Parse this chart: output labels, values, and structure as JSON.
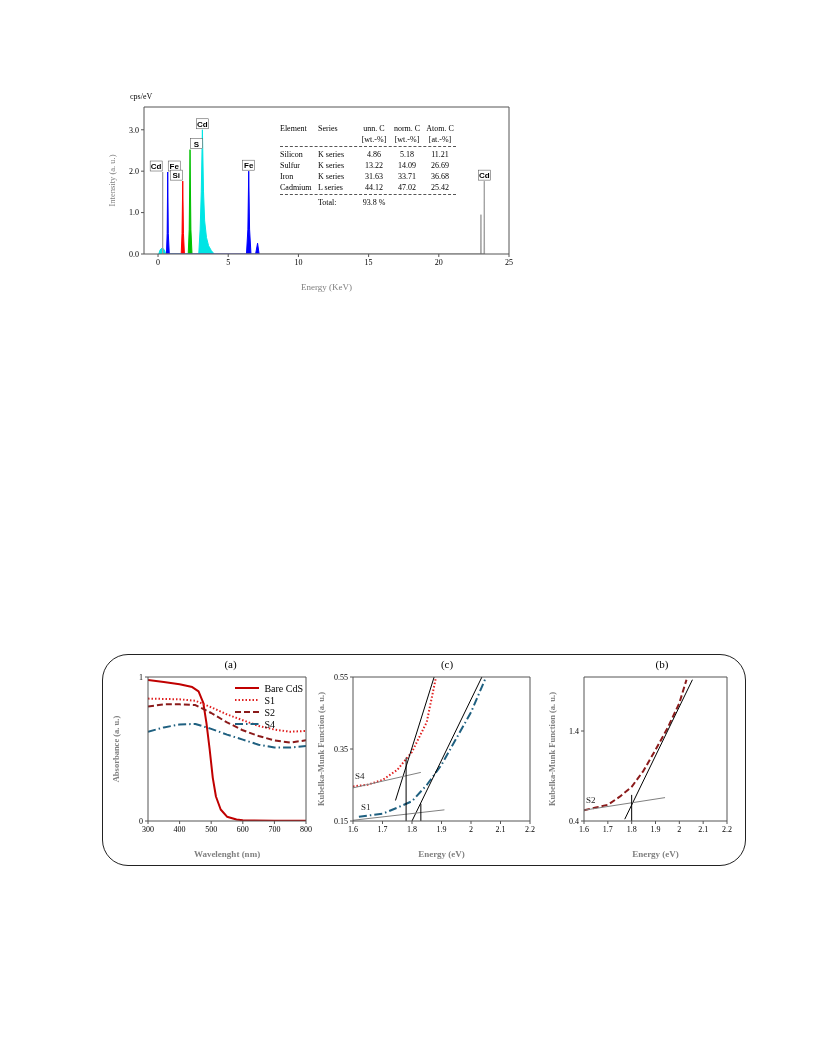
{
  "chart_data": [
    {
      "type": "area",
      "xlabel": "Energy (KeV)",
      "ylabel": "Intensity (a. u.)",
      "xlim": [
        -1,
        25
      ],
      "ylim": [
        0,
        3.55
      ],
      "xticks": [
        0,
        5,
        10,
        15,
        20,
        25
      ],
      "yticks": [
        {
          "value": 0,
          "label": "0.0"
        },
        {
          "value": 1,
          "label": "1.0"
        },
        {
          "value": 2,
          "label": "2.0"
        },
        {
          "value": 3,
          "label": "3.0"
        }
      ],
      "series": [
        {
          "color": "#00e5e5",
          "x": [
            0.05,
            0.15,
            0.3,
            0.45,
            0.55,
            2.9,
            3.0,
            3.08,
            3.16,
            3.24,
            3.32,
            3.45,
            3.6,
            3.8,
            4.0
          ],
          "values": [
            0,
            0.1,
            0.15,
            0.1,
            0,
            0,
            0.6,
            1.5,
            3.0,
            1.5,
            0.8,
            0.4,
            0.2,
            0.08,
            0
          ]
        },
        {
          "color": "#00c000",
          "x": [
            2.15,
            2.22,
            2.28,
            2.34,
            2.42
          ],
          "values": [
            0,
            0.6,
            2.52,
            0.6,
            0
          ]
        },
        {
          "color": "#ff0000",
          "x": [
            1.65,
            1.71,
            1.76,
            1.81,
            1.88
          ],
          "values": [
            0,
            0.5,
            1.76,
            0.5,
            0
          ]
        },
        {
          "color": "#0000ff",
          "x": [
            0.6,
            0.65,
            0.69,
            0.73,
            0.8,
            6.3,
            6.4,
            6.46,
            6.52,
            6.62,
            6.95,
            7.09,
            7.2
          ],
          "values": [
            0,
            0.5,
            1.98,
            0.5,
            0,
            0,
            0.6,
            2.0,
            0.6,
            0,
            0,
            0.26,
            0
          ]
        },
        {
          "type": "line",
          "color": "#a0a0a0",
          "x": [
            0.32,
            0.33,
            0.34,
            22.98,
            23.0,
            23.02,
            23.22,
            23.24,
            23.26
          ],
          "values": [
            0,
            1.98,
            0,
            0,
            0.95,
            0,
            0,
            1.76,
            0
          ]
        }
      ],
      "annotations": [
        "cps/eV",
        {
          "text": "Cd",
          "x": 0.33,
          "y": 1.98
        },
        {
          "text": "Fe",
          "x": 0.69,
          "y": 1.98
        },
        {
          "text": "Si",
          "x": 1.76,
          "y": 1.76
        },
        {
          "text": "S",
          "x": 2.28,
          "y": 2.52
        },
        {
          "text": "Cd",
          "x": 3.16,
          "y": 3.0
        },
        {
          "text": "Fe",
          "x": 6.46,
          "y": 2.0
        },
        {
          "text": "Cd",
          "x": 23.24,
          "y": 1.76
        },
        "Element\tSeries\tunn. C\tnorm. C\tAtom. C",
        "\t\t[wt.-%]\t[wt.-%]\t[at.-%]",
        "Silicon\tK series\t4.86\t5.18\t11.21",
        "Sulfur\tK series\t13.22\t14.09\t26.69",
        "Iron\tK series\t31.63\t33.71\t36.68",
        "Cadmium\tL series\t44.12\t47.02\t25.42",
        "\tTotal:\t93.8 %"
      ]
    },
    {
      "type": "line",
      "title": "(a)",
      "xlabel": "Wavelenght (nm)",
      "ylabel": "Absorbance (a. u.)",
      "xlim": [
        300,
        800
      ],
      "ylim": [
        0,
        1
      ],
      "xticks": [
        300,
        400,
        500,
        600,
        700,
        800
      ],
      "yticks": [
        0,
        1
      ],
      "legend": "top right",
      "x": [
        300,
        350,
        400,
        440,
        460,
        475,
        485,
        495,
        505,
        515,
        530,
        550,
        580,
        600,
        700,
        800
      ],
      "series": [
        {
          "name": "Bare CdS",
          "color": "#c00000",
          "line_style": "solid",
          "values": [
            0.98,
            0.965,
            0.95,
            0.93,
            0.9,
            0.82,
            0.68,
            0.5,
            0.3,
            0.17,
            0.08,
            0.03,
            0.01,
            0.005,
            0.002,
            0.002
          ]
        },
        {
          "name": "S1",
          "color": "#e02020",
          "line_style": "dotted",
          "x": [
            300,
            400,
            450,
            500,
            550,
            600,
            650,
            700,
            750,
            800
          ],
          "values": [
            0.85,
            0.845,
            0.835,
            0.79,
            0.74,
            0.7,
            0.66,
            0.635,
            0.62,
            0.625
          ]
        },
        {
          "name": "S2",
          "color": "#8b1a1a",
          "line_style": "dashed",
          "x": [
            300,
            350,
            400,
            450,
            500,
            550,
            600,
            650,
            700,
            750,
            800
          ],
          "values": [
            0.795,
            0.81,
            0.81,
            0.805,
            0.75,
            0.685,
            0.63,
            0.59,
            0.56,
            0.545,
            0.56
          ]
        },
        {
          "name": "S4",
          "color": "#1f6080",
          "line_style": "dashdot",
          "x": [
            300,
            350,
            400,
            450,
            500,
            550,
            600,
            650,
            700,
            750,
            800
          ],
          "values": [
            0.62,
            0.65,
            0.67,
            0.674,
            0.64,
            0.6,
            0.565,
            0.53,
            0.51,
            0.51,
            0.52
          ]
        }
      ]
    },
    {
      "type": "line",
      "title": "(c)",
      "xlabel": "Energy (eV)",
      "ylabel": "Kubelka-Munk  Function  (a. u.)",
      "xlim": [
        1.6,
        2.2
      ],
      "ylim": [
        0.15,
        0.55
      ],
      "xticks": [
        1.6,
        1.7,
        1.8,
        1.9,
        2,
        2.1,
        2.2
      ],
      "yticks": [
        0.15,
        0.35,
        0.55
      ],
      "series": [
        {
          "name": "S4",
          "color": "#e02020",
          "line_style": "dotted",
          "x": [
            1.6,
            1.65,
            1.7,
            1.75,
            1.8,
            1.85,
            1.88
          ],
          "values": [
            0.246,
            0.251,
            0.264,
            0.292,
            0.342,
            0.425,
            0.544
          ]
        },
        {
          "name": "S1",
          "color": "#1f6080",
          "line_style": "dashdot",
          "x": [
            1.62,
            1.7,
            1.75,
            1.8,
            1.85,
            1.9,
            1.95,
            2.0,
            2.05
          ],
          "values": [
            0.162,
            0.17,
            0.187,
            0.205,
            0.25,
            0.306,
            0.379,
            0.452,
            0.548
          ]
        },
        {
          "color": "#000000",
          "line_style": "solid",
          "x": [
            1.744,
            1.875
          ],
          "values": [
            0.207,
            0.55
          ]
        },
        {
          "color": "#808080",
          "line_style": "solid",
          "x": [
            1.6,
            1.83
          ],
          "values": [
            0.242,
            0.285
          ]
        },
        {
          "color": "#000000",
          "line_style": "solid",
          "x": [
            1.8,
            2.037
          ],
          "values": [
            0.15,
            0.55
          ]
        },
        {
          "color": "#808080",
          "line_style": "solid",
          "x": [
            1.6,
            1.91
          ],
          "values": [
            0.152,
            0.181
          ]
        },
        {
          "color": "#000000",
          "line_style": "solid",
          "x": [
            1.78,
            1.78
          ],
          "values": [
            0.15,
            0.326
          ]
        },
        {
          "color": "#000000",
          "line_style": "solid",
          "x": [
            1.83,
            1.83
          ],
          "values": [
            0.15,
            0.198
          ]
        }
      ]
    },
    {
      "type": "line",
      "title": "(b)",
      "xlabel": "Energy (eV)",
      "ylabel": "Kubelka-Munk  Function  (a. u.)",
      "xlim": [
        1.6,
        2.2
      ],
      "ylim": [
        0.4,
        2.0
      ],
      "xticks": [
        1.6,
        1.7,
        1.8,
        1.9,
        2,
        2.1,
        2.2
      ],
      "yticks": [
        0.4,
        1.4
      ],
      "series": [
        {
          "name": "S2",
          "color": "#8b1a1a",
          "line_style": "dashed",
          "x": [
            1.6,
            1.65,
            1.7,
            1.75,
            1.8,
            1.85,
            1.9,
            1.95,
            2.0,
            2.03
          ],
          "values": [
            0.52,
            0.55,
            0.58,
            0.67,
            0.78,
            0.96,
            1.19,
            1.43,
            1.71,
            1.97
          ]
        },
        {
          "color": "#000000",
          "line_style": "solid",
          "x": [
            1.771,
            2.055
          ],
          "values": [
            0.42,
            1.97
          ]
        },
        {
          "color": "#808080",
          "line_style": "solid",
          "x": [
            1.6,
            1.94
          ],
          "values": [
            0.52,
            0.66
          ]
        },
        {
          "color": "#000000",
          "line_style": "solid",
          "x": [
            1.8,
            1.8
          ],
          "values": [
            0.4,
            0.69
          ]
        }
      ]
    }
  ]
}
